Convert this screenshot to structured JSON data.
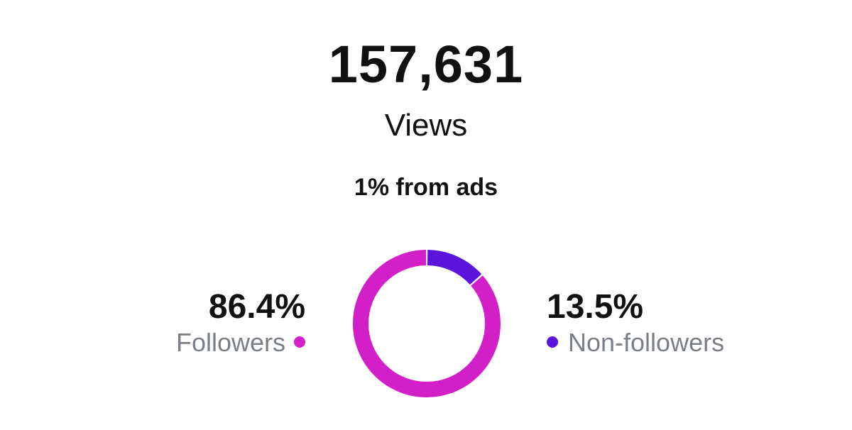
{
  "summary": {
    "views_count": "157,631",
    "views_label": "Views",
    "ads_note": "1% from ads"
  },
  "legend": {
    "followers_pct": "86.4%",
    "followers_label": "Followers",
    "non_followers_pct": "13.5%",
    "non_followers_label": "Non-followers"
  },
  "colors": {
    "followers": "#d21fc7",
    "non_followers": "#5b14d9"
  },
  "chart_data": {
    "type": "pie",
    "categories": [
      "Followers",
      "Non-followers"
    ],
    "values": [
      86.4,
      13.5
    ]
  }
}
